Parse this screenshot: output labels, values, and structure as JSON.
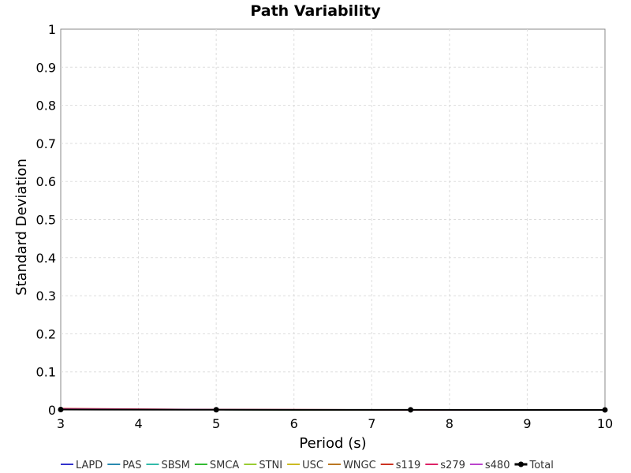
{
  "chart_data": {
    "type": "line",
    "title": "Path Variability",
    "xlabel": "Period (s)",
    "ylabel": "Standard Deviation",
    "xlim": [
      3,
      10
    ],
    "ylim": [
      0,
      1
    ],
    "x_ticks": [
      3,
      4,
      5,
      6,
      7,
      8,
      9,
      10
    ],
    "y_ticks": [
      0,
      0.1,
      0.2,
      0.3,
      0.4,
      0.5,
      0.6,
      0.7,
      0.8,
      0.9,
      1
    ],
    "y_tick_labels": [
      "0",
      "0.1",
      "0.2",
      "0.3",
      "0.4",
      "0.5",
      "0.6",
      "0.7",
      "0.8",
      "0.9",
      "1"
    ],
    "grid": true,
    "legend_position": "bottom",
    "x": [
      3,
      5,
      7.5,
      10
    ],
    "series": [
      {
        "name": "LAPD",
        "color": "#3333cc",
        "values": [
          0.001,
          0.0005,
          0.0002,
          0.0001
        ]
      },
      {
        "name": "PAS",
        "color": "#2a8ab0",
        "values": [
          0.001,
          0.0005,
          0.0002,
          0.0001
        ]
      },
      {
        "name": "SBSM",
        "color": "#33bbaa",
        "values": [
          0.001,
          0.0005,
          0.0002,
          0.0001
        ]
      },
      {
        "name": "SMCA",
        "color": "#33bb33",
        "values": [
          0.001,
          0.0005,
          0.0002,
          0.0001
        ]
      },
      {
        "name": "STNI",
        "color": "#99cc33",
        "values": [
          0.001,
          0.0005,
          0.0002,
          0.0001
        ]
      },
      {
        "name": "USC",
        "color": "#ccbb22",
        "values": [
          0.001,
          0.0005,
          0.0002,
          0.0001
        ]
      },
      {
        "name": "WNGC",
        "color": "#bb7722",
        "values": [
          0.002,
          0.0008,
          0.0003,
          0.0001
        ]
      },
      {
        "name": "s119",
        "color": "#cc3322",
        "values": [
          0.004,
          0.001,
          0.0003,
          0.0001
        ]
      },
      {
        "name": "s279",
        "color": "#dd2266",
        "values": [
          0.003,
          0.001,
          0.0003,
          0.0001
        ]
      },
      {
        "name": "s480",
        "color": "#bb44cc",
        "values": [
          0.002,
          0.0008,
          0.0003,
          0.0001
        ]
      },
      {
        "name": "Total",
        "color": "#000000",
        "values": [
          0.001,
          0.0005,
          0.0002,
          0.0001
        ],
        "markers": true
      }
    ]
  }
}
